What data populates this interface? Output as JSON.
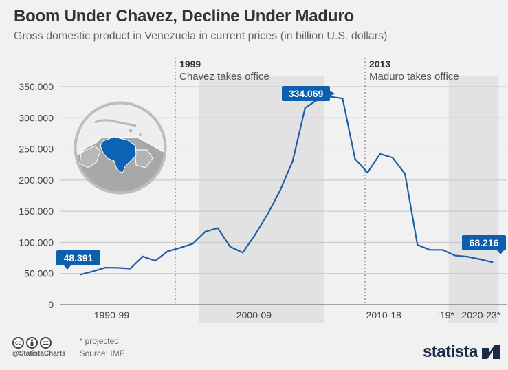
{
  "title": "Boom Under Chavez, Decline Under Maduro",
  "subtitle": "Gross domestic product in Venezuela in current prices (in billion U.S. dollars)",
  "chart_data": {
    "type": "line",
    "x": [
      1990,
      1991,
      1992,
      1993,
      1994,
      1995,
      1996,
      1997,
      1998,
      1999,
      2000,
      2001,
      2002,
      2003,
      2004,
      2005,
      2006,
      2007,
      2008,
      2009,
      2010,
      2011,
      2012,
      2013,
      2014,
      2015,
      2016,
      2017,
      2018,
      2019,
      2020,
      2021,
      2022,
      2023
    ],
    "values": [
      48.391,
      53.5,
      59.5,
      59.2,
      58.0,
      77.4,
      70.5,
      85.8,
      91.3,
      97.9,
      117.1,
      122.9,
      92.9,
      83.6,
      112.5,
      145.5,
      183.5,
      230.4,
      316.0,
      329.0,
      334.069,
      331.0,
      234.0,
      212.0,
      242.0,
      236.0,
      210.0,
      96.0,
      88.0,
      88.0,
      79.0,
      77.0,
      73.0,
      68.216
    ],
    "y_ticks": [
      "0",
      "50.000",
      "100.000",
      "150.000",
      "200.000",
      "250.000",
      "300.000",
      "350.000"
    ],
    "ylim": [
      0,
      350
    ],
    "x_group_labels": [
      "1990-99",
      "2000-09",
      "2010-18",
      "'19*",
      "2020-23*"
    ],
    "shaded_periods": [
      [
        2000,
        2009
      ],
      [
        2020,
        2023
      ]
    ],
    "annotations": [
      {
        "year": "1999",
        "text": "Chavez takes office"
      },
      {
        "year": "2013",
        "text": "Maduro takes office"
      }
    ],
    "callouts": [
      {
        "label": "48.391",
        "x": 1990,
        "y": 48.391
      },
      {
        "label": "334.069",
        "x": 2010,
        "y": 334.069
      },
      {
        "label": "68.216",
        "x": 2023,
        "y": 68.216
      }
    ],
    "grid": true,
    "line_color": "#1f5ea8",
    "callout_color": "#0d5fad"
  },
  "colors": {
    "background": "#f1f1f1",
    "shade": "#e2e2e2",
    "map_highlight": "#0c62b5",
    "map_land": "#a8a8a8"
  },
  "footer": {
    "handle": "@StatistaCharts",
    "note": "* projected",
    "source": "Source: IMF",
    "brand": "statista",
    "cc_icons": [
      "cc-icon",
      "by-icon",
      "equals-icon"
    ]
  }
}
